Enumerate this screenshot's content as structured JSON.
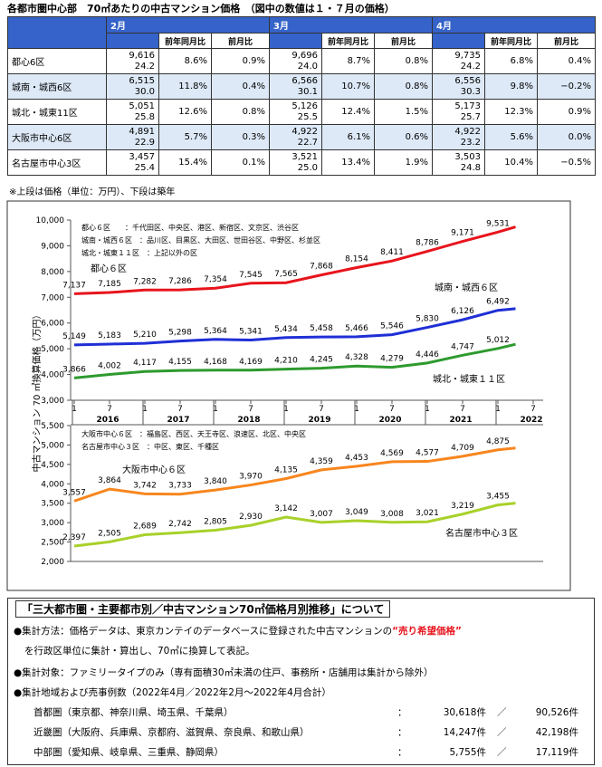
{
  "header": {
    "title": "各都市圏中心部　70㎡あたりの中古マンション価格　（図中の数値は１・７月の価格）"
  },
  "table": {
    "months": [
      "2月",
      "3月",
      "4月"
    ],
    "subheaders": [
      "前年同月比",
      "前月比"
    ],
    "rows": [
      {
        "name": "都心6区",
        "cells": [
          [
            "9,616",
            "24.2",
            "8.6%",
            "0.9%"
          ],
          [
            "9,696",
            "24.0",
            "8.7%",
            "0.8%"
          ],
          [
            "9,735",
            "24.2",
            "6.8%",
            "0.4%"
          ]
        ]
      },
      {
        "name": "城南・城西6区",
        "cells": [
          [
            "6,515",
            "30.0",
            "11.8%",
            "0.4%"
          ],
          [
            "6,566",
            "30.1",
            "10.7%",
            "0.8%"
          ],
          [
            "6,556",
            "30.3",
            "9.8%",
            "−0.2%"
          ]
        ]
      },
      {
        "name": "城北・城東11区",
        "cells": [
          [
            "5,051",
            "25.8",
            "12.6%",
            "0.8%"
          ],
          [
            "5,126",
            "25.5",
            "12.4%",
            "1.5%"
          ],
          [
            "5,173",
            "25.7",
            "12.3%",
            "0.9%"
          ]
        ]
      },
      {
        "name": "大阪市中心6区",
        "cells": [
          [
            "4,891",
            "22.9",
            "5.7%",
            "0.3%"
          ],
          [
            "4,922",
            "22.7",
            "6.1%",
            "0.6%"
          ],
          [
            "4,922",
            "23.2",
            "5.6%",
            "0.0%"
          ]
        ]
      },
      {
        "name": "名古屋市中心3区",
        "cells": [
          [
            "3,457",
            "25.4",
            "15.4%",
            "0.1%"
          ],
          [
            "3,521",
            "25.0",
            "13.4%",
            "1.9%"
          ],
          [
            "3,503",
            "24.8",
            "10.4%",
            "−0.5%"
          ]
        ]
      }
    ],
    "note": "※上段は価格（単位：万円）、下段は築年"
  },
  "chart_data": [
    {
      "type": "line",
      "ylabel": "中古マンション 70 ㎡換算価格（万円）",
      "notes": [
        "都心６区　　：千代田区、中央区、港区、新宿区、文京区、渋谷区",
        "城南・城西６区　：品川区、目黒区、大田区、世田谷区、中野区、杉並区",
        "城北・城東１１区　：上記以外の区"
      ],
      "x": [
        "2016-01",
        "2016-07",
        "2017-01",
        "2017-07",
        "2018-01",
        "2018-07",
        "2019-01",
        "2019-07",
        "2020-01",
        "2020-07",
        "2021-01",
        "2021-07",
        "2022-01",
        "2022-04"
      ],
      "xticks": [
        {
          "value": "2016-01",
          "label": "1"
        },
        {
          "value": "2016-07",
          "label": "7"
        },
        {
          "value": "2017-01",
          "label": "1"
        },
        {
          "value": "2017-07",
          "label": "7"
        },
        {
          "value": "2018-01",
          "label": "1"
        },
        {
          "value": "2018-07",
          "label": "7"
        },
        {
          "value": "2019-01",
          "label": "1"
        },
        {
          "value": "2019-07",
          "label": "7"
        },
        {
          "value": "2020-01",
          "label": "1"
        },
        {
          "value": "2020-07",
          "label": "7"
        },
        {
          "value": "2021-01",
          "label": "1"
        },
        {
          "value": "2021-07",
          "label": "7"
        },
        {
          "value": "2022-01",
          "label": "1"
        },
        {
          "value": "2022-07",
          "label": "7"
        }
      ],
      "years": [
        "2016",
        "2017",
        "2018",
        "2019",
        "2020",
        "2021",
        "2022"
      ],
      "ylim": [
        3000,
        10000
      ],
      "yticks": [
        {
          "value": 3000,
          "label": "3,000"
        },
        {
          "value": 4000,
          "label": "4,000"
        },
        {
          "value": 5000,
          "label": "5,000"
        },
        {
          "value": 6000,
          "label": "6,000"
        },
        {
          "value": 7000,
          "label": "7,000"
        },
        {
          "value": 8000,
          "label": "8,000"
        },
        {
          "value": 9000,
          "label": "9,000"
        },
        {
          "value": 10000,
          "label": "10,000"
        }
      ],
      "series": [
        {
          "name": "都心６区",
          "color": "#e8141c",
          "values": [
            7137,
            7185,
            7282,
            7286,
            7354,
            7545,
            7565,
            7868,
            8154,
            8411,
            8786,
            9171,
            9531,
            9735
          ],
          "value_labels": [
            "7,137",
            "7,185",
            "7,282",
            "7,286",
            "7,354",
            "7,545",
            "7,565",
            "7,868",
            "8,154",
            "8,411",
            "8,786",
            "9,171",
            "9,531",
            null
          ]
        },
        {
          "name": "城南・城西６区",
          "color": "#1f2fd6",
          "values": [
            5149,
            5183,
            5210,
            5298,
            5364,
            5341,
            5434,
            5458,
            5466,
            5546,
            5830,
            6126,
            6492,
            6556
          ],
          "value_labels": [
            "5,149",
            "5,183",
            "5,210",
            "5,298",
            "5,364",
            "5,341",
            "5,434",
            "5,458",
            "5,466",
            "5,546",
            "5,830",
            "6,126",
            "6,492",
            null
          ]
        },
        {
          "name": "城北・城東１１区",
          "color": "#2e9a2e",
          "values": [
            3866,
            4002,
            4117,
            4155,
            4168,
            4169,
            4210,
            4245,
            4328,
            4279,
            4446,
            4747,
            5012,
            5173
          ],
          "value_labels": [
            "3,866",
            "4,002",
            "4,117",
            "4,155",
            "4,168",
            "4,169",
            "4,210",
            "4,245",
            "4,328",
            "4,279",
            "4,446",
            "4,747",
            "5,012",
            null
          ]
        }
      ]
    },
    {
      "type": "line",
      "notes": [
        "大阪市中心６区　：福島区、西区、天王寺区、浪速区、北区、中央区",
        "名古屋市中心３区　：中区、東区、千種区"
      ],
      "x": [
        "2016-01",
        "2016-07",
        "2017-01",
        "2017-07",
        "2018-01",
        "2018-07",
        "2019-01",
        "2019-07",
        "2020-01",
        "2020-07",
        "2021-01",
        "2021-07",
        "2022-01",
        "2022-04"
      ],
      "ylim": [
        2000,
        5500
      ],
      "yticks": [
        {
          "value": 2000,
          "label": "2,000"
        },
        {
          "value": 2500,
          "label": "2,500"
        },
        {
          "value": 3000,
          "label": "3,000"
        },
        {
          "value": 3500,
          "label": "3,500"
        },
        {
          "value": 4000,
          "label": "4,000"
        },
        {
          "value": 4500,
          "label": "4,500"
        },
        {
          "value": 5000,
          "label": "5,000"
        },
        {
          "value": 5500,
          "label": "5,500"
        }
      ],
      "series": [
        {
          "name": "大阪市中心６区",
          "color": "#f7861e",
          "values": [
            3557,
            3864,
            3742,
            3733,
            3840,
            3970,
            4135,
            4359,
            4453,
            4569,
            4577,
            4709,
            4875,
            4922
          ],
          "value_labels": [
            "3,557",
            "3,864",
            "3,742",
            "3,733",
            "3,840",
            "3,970",
            "4,135",
            "4,359",
            "4,453",
            "4,569",
            "4,577",
            "4,709",
            "4,875",
            null
          ]
        },
        {
          "name": "名古屋市中心３区",
          "color": "#a8d12a",
          "values": [
            2397,
            2505,
            2689,
            2742,
            2805,
            2930,
            3142,
            3007,
            3049,
            3008,
            3021,
            3219,
            3455,
            3503
          ],
          "value_labels": [
            "2,397",
            "2,505",
            "2,689",
            "2,742",
            "2,805",
            "2,930",
            "3,142",
            "3,007",
            "3,049",
            "3,008",
            "3,021",
            "3,219",
            "3,455",
            null
          ]
        }
      ]
    }
  ],
  "about": {
    "heading": "「三大都市圏・主要都市別／中古マンション70㎡価格月別推移」について",
    "method_pre": "●集計方法：価格データは、東京カンテイのデータベースに登録された中古マンションの",
    "method_em": "“売り希望価格”",
    "method_post": "を行政区単位に集計・算出し、70㎡に換算して表記。",
    "target": "●集計対象：ファミリータイプのみ（専有面積30㎡未満の住戸、事務所・店舗用は集計から除外）",
    "area": "●集計地域および売事例数（2022年4月／2022年2月～2022年4月合計）",
    "colon": "：",
    "slash": "／",
    "regions": [
      {
        "name": "首都圏（東京都、神奈川県、埼玉県、千葉県）",
        "month": "30,618件",
        "total": "90,526件"
      },
      {
        "name": "近畿圏（大阪府、兵庫県、京都府、滋賀県、奈良県、和歌山県）",
        "month": "14,247件",
        "total": "42,198件"
      },
      {
        "name": "中部圏（愛知県、岐阜県、三重県、静岡県）",
        "month": "5,755件",
        "total": "17,119件"
      }
    ]
  }
}
